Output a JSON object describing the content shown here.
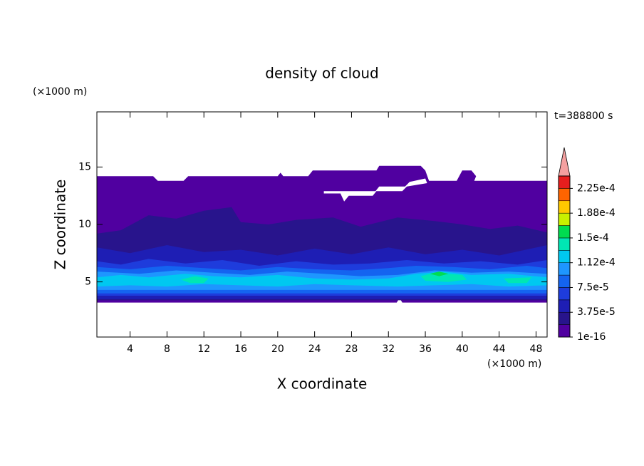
{
  "chart_data": {
    "type": "contour",
    "title": "density of cloud",
    "x_unit": "(×1000 m)",
    "y_unit": "(×1000 m)",
    "time_label": "t=388800 s",
    "xlabel": "X coordinate",
    "ylabel": "Z coordinate",
    "xlim": [
      0.4,
      49.2
    ],
    "ylim": [
      0.2,
      19.8
    ],
    "xticks": [
      4,
      8,
      12,
      16,
      20,
      24,
      28,
      32,
      36,
      40,
      44,
      48
    ],
    "yticks": [
      5,
      10,
      15
    ],
    "levels": [
      1e-16,
      1.875e-05,
      3.75e-05,
      5.625e-05,
      7.5e-05,
      9.375e-05,
      0.0001125,
      0.00013125,
      0.00015,
      0.00016875,
      0.0001875,
      0.00020625,
      0.000225
    ],
    "level_colors": [
      "#5000a0",
      "#28148c",
      "#1e1eb4",
      "#1e3cdc",
      "#1464f0",
      "#1e96ff",
      "#00c8f0",
      "#00e6b4",
      "#00dc50",
      "#c8f000",
      "#ffc800",
      "#ff6400",
      "#e61e1e"
    ],
    "extend_color": "#f4a0a0",
    "colorbar_lim": [
      1e-16,
      0.00024375
    ],
    "colorbar_ticks": [
      {
        "value": 1e-16,
        "label": "1e-16"
      },
      {
        "value": 3.75e-05,
        "label": "3.75e-5"
      },
      {
        "value": 7.5e-05,
        "label": "7.5e-5"
      },
      {
        "value": 0.0001125,
        "label": "1.12e-4"
      },
      {
        "value": 0.00015,
        "label": "1.5e-4"
      },
      {
        "value": 0.0001875,
        "label": "1.88e-4"
      },
      {
        "value": 0.000225,
        "label": "2.25e-4"
      }
    ],
    "regions": [
      {
        "level": 0,
        "x": [
          0.4,
          6.5,
          7,
          9.8,
          10.3,
          20,
          20.3,
          20.6,
          23.3,
          23.8,
          30.7,
          31,
          35.5,
          36,
          36.4,
          39.4,
          40,
          41,
          41.5,
          41.3,
          49.2,
          49.2,
          33.5,
          33.2,
          32.9,
          0.4,
          null,
          25,
          26.8,
          27.2,
          27.7,
          30.3,
          30.7,
          33.5,
          34,
          36.2,
          36,
          34.3,
          33.8,
          31,
          30.6,
          27.8,
          27.4,
          25
        ],
        "z": [
          14.2,
          14.2,
          13.8,
          13.8,
          14.2,
          14.2,
          14.5,
          14.2,
          14.2,
          14.7,
          14.7,
          15.1,
          15.1,
          14.7,
          13.8,
          13.8,
          14.7,
          14.7,
          14.2,
          13.8,
          13.8,
          3.2,
          3.2,
          3.6,
          3.2,
          3.2,
          null,
          12.7,
          12.7,
          12.0,
          12.5,
          12.5,
          12.9,
          12.9,
          13.3,
          13.6,
          14.0,
          13.7,
          13.3,
          13.3,
          12.9,
          12.9,
          12.9,
          12.9
        ]
      },
      {
        "level": 1,
        "x": [
          0.4,
          3,
          6,
          9,
          12,
          15,
          16,
          19,
          22,
          26,
          29,
          33,
          37,
          40,
          43,
          46,
          49.2,
          49.2,
          0.4
        ],
        "z": [
          9.2,
          9.5,
          10.8,
          10.5,
          11.2,
          11.5,
          10.2,
          10,
          10.4,
          10.6,
          9.8,
          10.6,
          10.3,
          10,
          9.6,
          9.9,
          9.3,
          3.4,
          3.4
        ]
      },
      {
        "level": 2,
        "x": [
          0.4,
          4,
          8,
          12,
          16,
          20,
          24,
          28,
          32,
          36,
          40,
          44,
          49.2,
          49.2,
          0.4
        ],
        "z": [
          8,
          7.5,
          8.2,
          7.6,
          7.8,
          7.3,
          7.9,
          7.4,
          8,
          7.4,
          7.8,
          7.3,
          8.2,
          3.5,
          3.5
        ]
      },
      {
        "level": 3,
        "x": [
          0.4,
          3,
          6,
          10,
          14,
          18,
          22,
          26,
          30,
          34,
          38,
          42,
          46,
          49.2,
          49.2,
          0.4
        ],
        "z": [
          6.8,
          6.5,
          7,
          6.6,
          6.9,
          6.4,
          6.8,
          6.5,
          6.6,
          6.9,
          6.6,
          6.8,
          6.5,
          6.9,
          3.8,
          3.8
        ]
      },
      {
        "level": 4,
        "x": [
          0.4,
          4,
          8,
          12,
          16,
          20,
          24,
          28,
          32,
          35,
          39,
          43,
          47,
          49.2,
          49.2,
          0.4
        ],
        "z": [
          6.3,
          6.1,
          6.4,
          6.2,
          6.0,
          6.3,
          6.1,
          6.0,
          6.2,
          6.4,
          6.3,
          6.1,
          6.4,
          6.2,
          4.0,
          4.0
        ]
      },
      {
        "level": 5,
        "x": [
          0.4,
          5,
          9,
          13,
          17,
          21,
          25,
          29,
          33,
          37,
          41,
          45,
          49.2,
          49.2,
          0.4
        ],
        "z": [
          5.9,
          5.7,
          6.0,
          5.8,
          5.6,
          5.9,
          5.7,
          5.5,
          5.6,
          6.0,
          5.8,
          5.9,
          5.7,
          4.3,
          4.3
        ]
      },
      {
        "level": 6,
        "x": [
          0.4,
          3,
          6,
          10,
          13,
          16,
          20,
          24,
          28,
          32,
          35,
          38,
          41,
          45,
          49.2,
          49.2,
          45,
          41,
          37,
          33,
          28,
          24,
          20,
          16,
          12,
          8,
          4,
          0.4
        ],
        "z": [
          5.4,
          5.6,
          5.4,
          5.7,
          5.5,
          5.4,
          5.6,
          5.3,
          5.2,
          5.3,
          5.7,
          5.9,
          5.6,
          5.7,
          5.4,
          4.7,
          4.6,
          4.8,
          4.7,
          4.6,
          4.7,
          4.8,
          4.6,
          4.7,
          4.8,
          4.6,
          4.7,
          4.6
        ]
      },
      {
        "level": 7,
        "x": [
          9.5,
          11,
          12.5,
          12,
          10.5,
          9.5,
          null,
          35.5,
          37,
          40,
          40.5,
          38.5,
          36,
          35.5,
          null,
          44.5,
          47.5,
          47,
          45,
          44.5
        ],
        "z": [
          5.2,
          5.5,
          5.3,
          4.9,
          4.9,
          5.2,
          null,
          5.5,
          5.8,
          5.6,
          5.2,
          5.0,
          5.1,
          5.5,
          null,
          5.3,
          5.4,
          4.9,
          4.9,
          5.3
        ]
      },
      {
        "level": 8,
        "x": [
          36.5,
          37.5,
          38.5,
          37.5,
          36.5
        ],
        "z": [
          5.7,
          5.9,
          5.7,
          5.5,
          5.7
        ]
      }
    ]
  }
}
